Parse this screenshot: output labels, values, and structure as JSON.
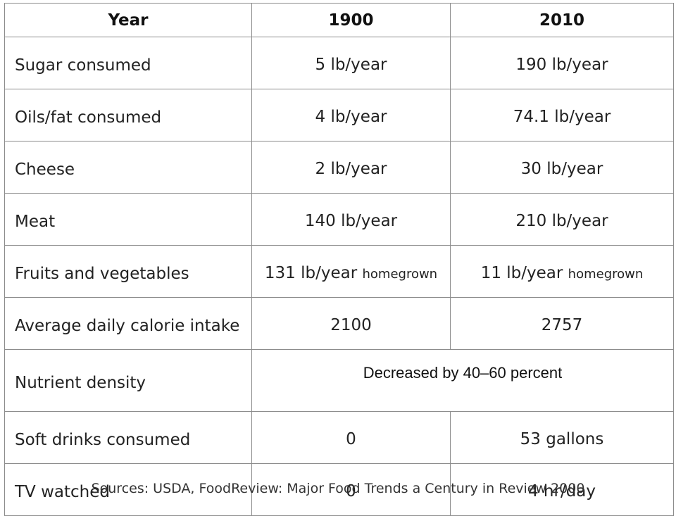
{
  "table": {
    "headers": [
      "Year",
      "1900",
      "2010"
    ],
    "rows": [
      {
        "label": "Sugar consumed",
        "v1900": "5 lb/year",
        "v2010": "190 lb/year"
      },
      {
        "label": "Oils/fat consumed",
        "v1900": "4 lb/year",
        "v2010": "74.1 lb/year"
      },
      {
        "label": "Cheese",
        "v1900": "2 lb/year",
        "v2010": "30 lb/year"
      },
      {
        "label": "Meat",
        "v1900": "140 lb/year",
        "v2010": "210 lb/year"
      },
      {
        "label": "Fruits and vegetables",
        "v1900": "131 lb/year",
        "v1900_note": "homegrown",
        "v2010": "11 lb/year",
        "v2010_note": "homegrown"
      },
      {
        "label": "Average daily calorie intake",
        "v1900": "2100",
        "v2010": "2757"
      },
      {
        "label": "Nutrient density",
        "merged": "Decreased by 40–60 percent"
      },
      {
        "label": "Soft drinks consumed",
        "v1900": "0",
        "v2010": "53 gallons"
      },
      {
        "label": "TV watched",
        "v1900": "0",
        "v2010": "4 hr/day"
      }
    ]
  },
  "source": "Sources: USDA, FoodReview: Major Food Trends a Century in Review 2000"
}
